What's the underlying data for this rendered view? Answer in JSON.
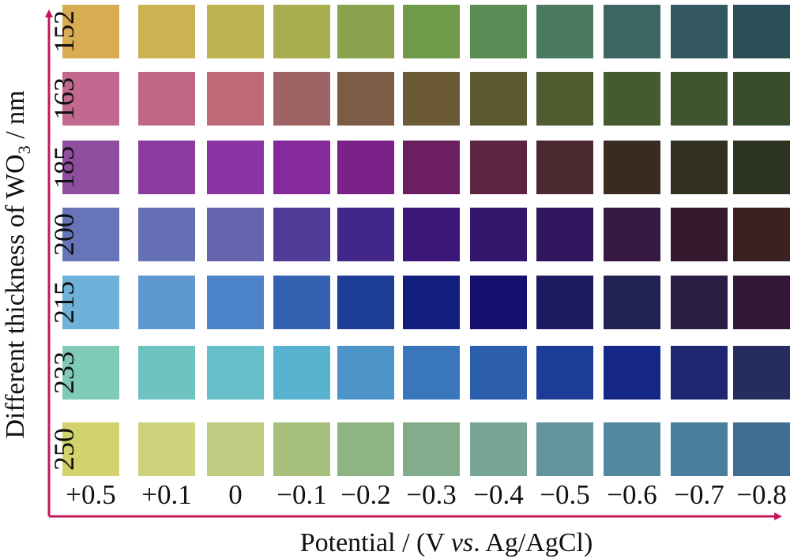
{
  "chart_data": {
    "type": "heatmap",
    "xlabel": {
      "prefix": "Potential / (V ",
      "italic": "vs",
      "suffix": ". Ag/AgCl)"
    },
    "ylabel": {
      "prefix": "Different thickness of WO",
      "subscript": "3",
      "suffix": " / nm"
    },
    "x_categories": [
      "+0.5",
      "+0.1",
      "0",
      "−0.1",
      "−0.2",
      "−0.3",
      "−0.4",
      "−0.5",
      "−0.6",
      "−0.7",
      "−0.8"
    ],
    "y_categories": [
      "152",
      "163",
      "185",
      "200",
      "215",
      "233",
      "250"
    ],
    "axis_color": "#c2185b",
    "cells": [
      [
        "#d7ac52",
        "#cdb253",
        "#bcb350",
        "#a8ad4f",
        "#88a24e",
        "#6e9a4a",
        "#5a8c56",
        "#4b7a62",
        "#3c6664",
        "#335861",
        "#2b4f57"
      ],
      [
        "#c2698f",
        "#c06787",
        "#bd6a76",
        "#9d6463",
        "#7c5c45",
        "#6b5a34",
        "#5c5a31",
        "#4e5c2f",
        "#465a2f",
        "#3e5530",
        "#374e2c"
      ],
      [
        "#8e4e9e",
        "#8b3c9e",
        "#8b35a4",
        "#86299a",
        "#7a2287",
        "#6b1f60",
        "#5c2643",
        "#4a2a30",
        "#3b2a22",
        "#33301f",
        "#2c331f"
      ],
      [
        "#6775b8",
        "#6670b4",
        "#6563ad",
        "#503c98",
        "#43268a",
        "#3a1779",
        "#33166b",
        "#32175e",
        "#361a43",
        "#36192f",
        "#3a2121"
      ],
      [
        "#6fb1d8",
        "#5f97d0",
        "#4d83c8",
        "#3462b0",
        "#1d3d96",
        "#131e7c",
        "#150f6e",
        "#1c1b61",
        "#232353",
        "#2a1e44",
        "#321736"
      ],
      [
        "#80cbb8",
        "#6ec3c0",
        "#66bec8",
        "#5ab2d1",
        "#4d94c9",
        "#3a76bb",
        "#2b5ead",
        "#1c3c98",
        "#142686",
        "#1e2672",
        "#242d5d"
      ],
      [
        "#d3d36e",
        "#cfd27c",
        "#bdcc80",
        "#a6c07c",
        "#8eb484",
        "#82ad8c",
        "#77a596",
        "#6494a0",
        "#5488a1",
        "#4a7c9b",
        "#416e90"
      ]
    ]
  }
}
